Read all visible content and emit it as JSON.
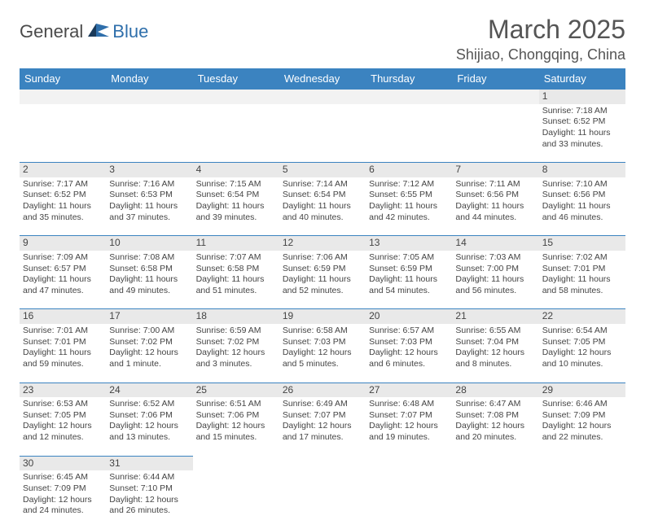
{
  "logo": {
    "general": "General",
    "blue": "Blue"
  },
  "title": "March 2025",
  "location": "Shijiao, Chongqing, China",
  "weekdays": [
    "Sunday",
    "Monday",
    "Tuesday",
    "Wednesday",
    "Thursday",
    "Friday",
    "Saturday"
  ],
  "colors": {
    "header_bg": "#3b83c0",
    "day_bg": "#e9e9e9",
    "border": "#3b83c0"
  },
  "weeks": [
    [
      null,
      null,
      null,
      null,
      null,
      null,
      {
        "n": "1",
        "sr": "Sunrise: 7:18 AM",
        "ss": "Sunset: 6:52 PM",
        "dl": "Daylight: 11 hours and 33 minutes."
      }
    ],
    [
      {
        "n": "2",
        "sr": "Sunrise: 7:17 AM",
        "ss": "Sunset: 6:52 PM",
        "dl": "Daylight: 11 hours and 35 minutes."
      },
      {
        "n": "3",
        "sr": "Sunrise: 7:16 AM",
        "ss": "Sunset: 6:53 PM",
        "dl": "Daylight: 11 hours and 37 minutes."
      },
      {
        "n": "4",
        "sr": "Sunrise: 7:15 AM",
        "ss": "Sunset: 6:54 PM",
        "dl": "Daylight: 11 hours and 39 minutes."
      },
      {
        "n": "5",
        "sr": "Sunrise: 7:14 AM",
        "ss": "Sunset: 6:54 PM",
        "dl": "Daylight: 11 hours and 40 minutes."
      },
      {
        "n": "6",
        "sr": "Sunrise: 7:12 AM",
        "ss": "Sunset: 6:55 PM",
        "dl": "Daylight: 11 hours and 42 minutes."
      },
      {
        "n": "7",
        "sr": "Sunrise: 7:11 AM",
        "ss": "Sunset: 6:56 PM",
        "dl": "Daylight: 11 hours and 44 minutes."
      },
      {
        "n": "8",
        "sr": "Sunrise: 7:10 AM",
        "ss": "Sunset: 6:56 PM",
        "dl": "Daylight: 11 hours and 46 minutes."
      }
    ],
    [
      {
        "n": "9",
        "sr": "Sunrise: 7:09 AM",
        "ss": "Sunset: 6:57 PM",
        "dl": "Daylight: 11 hours and 47 minutes."
      },
      {
        "n": "10",
        "sr": "Sunrise: 7:08 AM",
        "ss": "Sunset: 6:58 PM",
        "dl": "Daylight: 11 hours and 49 minutes."
      },
      {
        "n": "11",
        "sr": "Sunrise: 7:07 AM",
        "ss": "Sunset: 6:58 PM",
        "dl": "Daylight: 11 hours and 51 minutes."
      },
      {
        "n": "12",
        "sr": "Sunrise: 7:06 AM",
        "ss": "Sunset: 6:59 PM",
        "dl": "Daylight: 11 hours and 52 minutes."
      },
      {
        "n": "13",
        "sr": "Sunrise: 7:05 AM",
        "ss": "Sunset: 6:59 PM",
        "dl": "Daylight: 11 hours and 54 minutes."
      },
      {
        "n": "14",
        "sr": "Sunrise: 7:03 AM",
        "ss": "Sunset: 7:00 PM",
        "dl": "Daylight: 11 hours and 56 minutes."
      },
      {
        "n": "15",
        "sr": "Sunrise: 7:02 AM",
        "ss": "Sunset: 7:01 PM",
        "dl": "Daylight: 11 hours and 58 minutes."
      }
    ],
    [
      {
        "n": "16",
        "sr": "Sunrise: 7:01 AM",
        "ss": "Sunset: 7:01 PM",
        "dl": "Daylight: 11 hours and 59 minutes."
      },
      {
        "n": "17",
        "sr": "Sunrise: 7:00 AM",
        "ss": "Sunset: 7:02 PM",
        "dl": "Daylight: 12 hours and 1 minute."
      },
      {
        "n": "18",
        "sr": "Sunrise: 6:59 AM",
        "ss": "Sunset: 7:02 PM",
        "dl": "Daylight: 12 hours and 3 minutes."
      },
      {
        "n": "19",
        "sr": "Sunrise: 6:58 AM",
        "ss": "Sunset: 7:03 PM",
        "dl": "Daylight: 12 hours and 5 minutes."
      },
      {
        "n": "20",
        "sr": "Sunrise: 6:57 AM",
        "ss": "Sunset: 7:03 PM",
        "dl": "Daylight: 12 hours and 6 minutes."
      },
      {
        "n": "21",
        "sr": "Sunrise: 6:55 AM",
        "ss": "Sunset: 7:04 PM",
        "dl": "Daylight: 12 hours and 8 minutes."
      },
      {
        "n": "22",
        "sr": "Sunrise: 6:54 AM",
        "ss": "Sunset: 7:05 PM",
        "dl": "Daylight: 12 hours and 10 minutes."
      }
    ],
    [
      {
        "n": "23",
        "sr": "Sunrise: 6:53 AM",
        "ss": "Sunset: 7:05 PM",
        "dl": "Daylight: 12 hours and 12 minutes."
      },
      {
        "n": "24",
        "sr": "Sunrise: 6:52 AM",
        "ss": "Sunset: 7:06 PM",
        "dl": "Daylight: 12 hours and 13 minutes."
      },
      {
        "n": "25",
        "sr": "Sunrise: 6:51 AM",
        "ss": "Sunset: 7:06 PM",
        "dl": "Daylight: 12 hours and 15 minutes."
      },
      {
        "n": "26",
        "sr": "Sunrise: 6:49 AM",
        "ss": "Sunset: 7:07 PM",
        "dl": "Daylight: 12 hours and 17 minutes."
      },
      {
        "n": "27",
        "sr": "Sunrise: 6:48 AM",
        "ss": "Sunset: 7:07 PM",
        "dl": "Daylight: 12 hours and 19 minutes."
      },
      {
        "n": "28",
        "sr": "Sunrise: 6:47 AM",
        "ss": "Sunset: 7:08 PM",
        "dl": "Daylight: 12 hours and 20 minutes."
      },
      {
        "n": "29",
        "sr": "Sunrise: 6:46 AM",
        "ss": "Sunset: 7:09 PM",
        "dl": "Daylight: 12 hours and 22 minutes."
      }
    ],
    [
      {
        "n": "30",
        "sr": "Sunrise: 6:45 AM",
        "ss": "Sunset: 7:09 PM",
        "dl": "Daylight: 12 hours and 24 minutes."
      },
      {
        "n": "31",
        "sr": "Sunrise: 6:44 AM",
        "ss": "Sunset: 7:10 PM",
        "dl": "Daylight: 12 hours and 26 minutes."
      },
      null,
      null,
      null,
      null,
      null
    ]
  ]
}
